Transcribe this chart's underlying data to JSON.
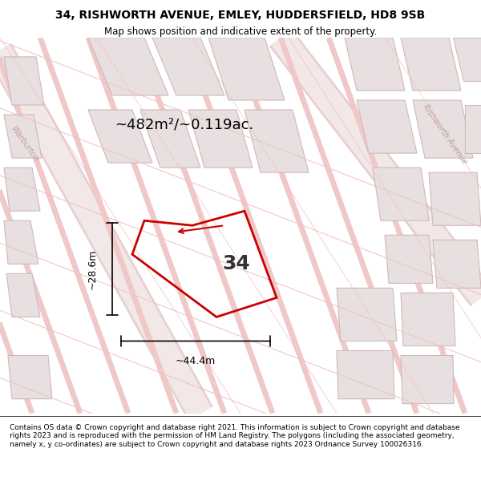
{
  "title": "34, RISHWORTH AVENUE, EMLEY, HUDDERSFIELD, HD8 9SB",
  "subtitle": "Map shows position and indicative extent of the property.",
  "footer": "Contains OS data © Crown copyright and database right 2021. This information is subject to Crown copyright and database rights 2023 and is reproduced with the permission of HM Land Registry. The polygons (including the associated geometry, namely x, y co-ordinates) are subject to Crown copyright and database rights 2023 Ordnance Survey 100026316.",
  "area_label": "~482m²/~0.119ac.",
  "house_number": "34",
  "dim_width": "~44.4m",
  "dim_height": "~28.6m",
  "bg_color": "#f5f0f0",
  "map_bg": "#ffffff",
  "road_color": "#f0c8c8",
  "building_color": "#e0d8d8",
  "building_stroke": "#d0b8b8",
  "plot_color": "#cc0000",
  "street_label_warburton": "Warburton",
  "street_label_rishworth": "Rishworth Avenue"
}
